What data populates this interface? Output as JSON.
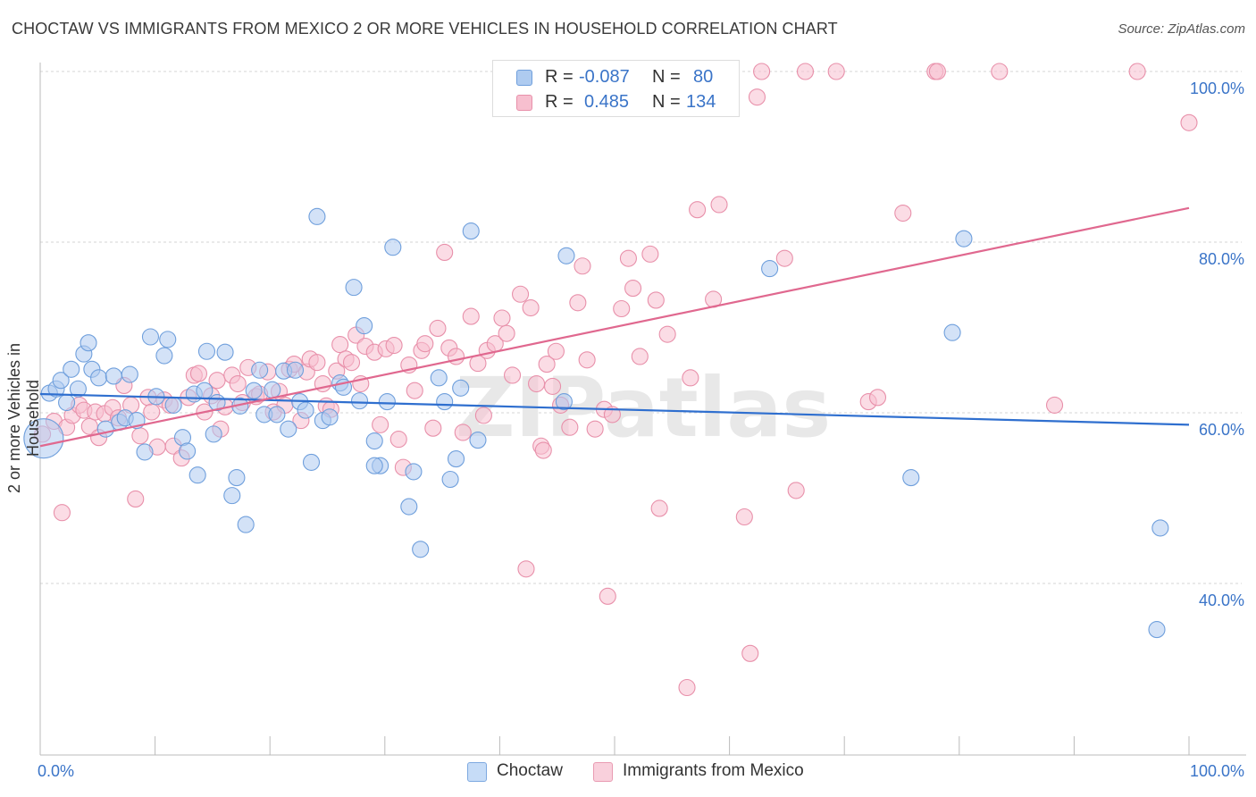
{
  "title": "CHOCTAW VS IMMIGRANTS FROM MEXICO 2 OR MORE VEHICLES IN HOUSEHOLD CORRELATION CHART",
  "source": "Source: ZipAtlas.com",
  "watermark": "ZIPatlas",
  "legend": {
    "rows": [
      {
        "r_label": "R =",
        "r_value": "-0.087",
        "n_label": "N =",
        "n_value": "80",
        "color": "#aecbf0",
        "stroke": "#6f9fdc"
      },
      {
        "r_label": "R =",
        "r_value": "0.485",
        "n_label": "N =",
        "n_value": "134",
        "color": "#f7bfcf",
        "stroke": "#e890aa"
      }
    ]
  },
  "bottom_legend": [
    {
      "label": "Choctaw",
      "color": "#c6dcf7",
      "stroke": "#7ea9e0"
    },
    {
      "label": "Immigrants from Mexico",
      "color": "#f9d0dc",
      "stroke": "#e99bb2"
    }
  ],
  "chart_data": {
    "type": "scatter",
    "title": "CHOCTAW VS IMMIGRANTS FROM MEXICO 2 OR MORE VEHICLES IN HOUSEHOLD CORRELATION CHART",
    "xlabel": "",
    "ylabel": "2 or more Vehicles in Household",
    "xlim": [
      0,
      100
    ],
    "ylim": [
      20,
      102
    ],
    "x_tick_labels": [
      "0.0%",
      "100.0%"
    ],
    "y_ticks": [
      40,
      60,
      80,
      100
    ],
    "y_tick_labels": [
      "40.0%",
      "60.0%",
      "80.0%",
      "100.0%"
    ],
    "grid": true,
    "series": [
      {
        "name": "Choctaw",
        "color": "#6f9fdc",
        "fill": "#aecbf0",
        "trend": {
          "x": [
            0,
            100
          ],
          "y": [
            62.2,
            58.6
          ]
        },
        "points": [
          [
            0.3,
            57
          ],
          [
            0.8,
            62.3
          ],
          [
            1.4,
            62.8
          ],
          [
            1.8,
            63.8
          ],
          [
            2.3,
            61.2
          ],
          [
            2.7,
            65.1
          ],
          [
            3.3,
            62.8
          ],
          [
            3.8,
            66.9
          ],
          [
            4.2,
            68.2
          ],
          [
            4.5,
            65.1
          ],
          [
            5.1,
            64.1
          ],
          [
            5.7,
            58.1
          ],
          [
            6.4,
            64.3
          ],
          [
            6.9,
            58.9
          ],
          [
            7.4,
            59.4
          ],
          [
            7.8,
            64.5
          ],
          [
            8.4,
            59.1
          ],
          [
            9.1,
            55.4
          ],
          [
            9.6,
            68.9
          ],
          [
            10.1,
            61.9
          ],
          [
            10.8,
            66.7
          ],
          [
            11.1,
            68.6
          ],
          [
            11.6,
            60.9
          ],
          [
            12.4,
            57.1
          ],
          [
            12.8,
            55.5
          ],
          [
            13.4,
            62.2
          ],
          [
            13.7,
            52.7
          ],
          [
            14.3,
            62.6
          ],
          [
            14.5,
            67.2
          ],
          [
            15.1,
            57.5
          ],
          [
            15.4,
            61.2
          ],
          [
            16.1,
            67.1
          ],
          [
            16.7,
            50.3
          ],
          [
            17.1,
            52.4
          ],
          [
            17.4,
            60.8
          ],
          [
            17.9,
            46.9
          ],
          [
            18.6,
            62.6
          ],
          [
            19.1,
            65
          ],
          [
            19.5,
            59.8
          ],
          [
            20.2,
            62.7
          ],
          [
            20.6,
            59.8
          ],
          [
            21.2,
            64.9
          ],
          [
            21.6,
            58.1
          ],
          [
            22.2,
            65
          ],
          [
            22.6,
            61.3
          ],
          [
            23.1,
            60.3
          ],
          [
            23.6,
            54.2
          ],
          [
            24.1,
            83
          ],
          [
            24.6,
            59.1
          ],
          [
            25.2,
            59.5
          ],
          [
            26.1,
            63.5
          ],
          [
            26.4,
            63
          ],
          [
            27.3,
            74.7
          ],
          [
            27.8,
            61.4
          ],
          [
            28.2,
            70.2
          ],
          [
            29.1,
            56.7
          ],
          [
            29.6,
            53.8
          ],
          [
            29.1,
            53.8
          ],
          [
            30.2,
            61.3
          ],
          [
            30.7,
            79.4
          ],
          [
            32.1,
            49
          ],
          [
            32.5,
            53.1
          ],
          [
            33.1,
            44
          ],
          [
            34.7,
            64.1
          ],
          [
            35.2,
            61.3
          ],
          [
            35.7,
            52.2
          ],
          [
            36.2,
            54.6
          ],
          [
            36.6,
            62.9
          ],
          [
            37.5,
            81.3
          ],
          [
            38.1,
            56.8
          ],
          [
            45.6,
            61.3
          ],
          [
            45.8,
            78.4
          ],
          [
            63.5,
            76.9
          ],
          [
            75.8,
            52.4
          ],
          [
            80.4,
            80.4
          ],
          [
            79.4,
            69.4
          ],
          [
            97.5,
            46.5
          ],
          [
            97.2,
            34.6
          ]
        ]
      },
      {
        "name": "Immigrants from Mexico",
        "color": "#e890aa",
        "fill": "#f7bfcf",
        "trend": {
          "x": [
            0,
            100
          ],
          "y": [
            56.1,
            84
          ]
        },
        "points": [
          [
            0.2,
            57.5
          ],
          [
            1.2,
            59
          ],
          [
            1.9,
            48.3
          ],
          [
            2.3,
            58.3
          ],
          [
            2.8,
            59.7
          ],
          [
            3.4,
            60.9
          ],
          [
            3.8,
            60.3
          ],
          [
            4.3,
            58.4
          ],
          [
            4.8,
            60.1
          ],
          [
            5.1,
            57.1
          ],
          [
            5.6,
            59.9
          ],
          [
            6.3,
            60.6
          ],
          [
            6.8,
            59.4
          ],
          [
            7.3,
            63.2
          ],
          [
            7.9,
            60.9
          ],
          [
            8.3,
            49.9
          ],
          [
            8.7,
            57.3
          ],
          [
            9.4,
            61.8
          ],
          [
            9.7,
            60.1
          ],
          [
            10.2,
            56
          ],
          [
            10.8,
            61.5
          ],
          [
            11.3,
            60.9
          ],
          [
            11.6,
            56.1
          ],
          [
            12.3,
            54.7
          ],
          [
            12.9,
            61.8
          ],
          [
            13.4,
            64.4
          ],
          [
            13.8,
            64.6
          ],
          [
            14.3,
            60.1
          ],
          [
            14.9,
            62
          ],
          [
            15.4,
            63.8
          ],
          [
            15.7,
            58.1
          ],
          [
            16.1,
            60.7
          ],
          [
            16.7,
            64.4
          ],
          [
            17.2,
            63.4
          ],
          [
            17.6,
            61.2
          ],
          [
            18.1,
            65.3
          ],
          [
            18.8,
            61.9
          ],
          [
            19.1,
            62.2
          ],
          [
            19.8,
            64.8
          ],
          [
            20.3,
            60.1
          ],
          [
            20.8,
            62.5
          ],
          [
            21.3,
            60.9
          ],
          [
            21.7,
            65.1
          ],
          [
            22.1,
            65.7
          ],
          [
            22.7,
            59.1
          ],
          [
            23.2,
            64.8
          ],
          [
            23.5,
            66.3
          ],
          [
            24.1,
            65.9
          ],
          [
            24.6,
            63.4
          ],
          [
            24.9,
            60.8
          ],
          [
            25.3,
            60.4
          ],
          [
            25.8,
            64.9
          ],
          [
            26.1,
            68
          ],
          [
            26.6,
            66.3
          ],
          [
            27.1,
            65.9
          ],
          [
            27.5,
            69.1
          ],
          [
            27.9,
            63.4
          ],
          [
            28.3,
            67.8
          ],
          [
            29.1,
            67.1
          ],
          [
            29.6,
            58.6
          ],
          [
            30.1,
            67.5
          ],
          [
            30.8,
            67.9
          ],
          [
            31.2,
            56.9
          ],
          [
            31.6,
            53.6
          ],
          [
            32.1,
            65.6
          ],
          [
            32.6,
            62.6
          ],
          [
            33.2,
            67.3
          ],
          [
            33.5,
            68.1
          ],
          [
            34.2,
            58.2
          ],
          [
            34.6,
            69.9
          ],
          [
            35.2,
            78.8
          ],
          [
            35.6,
            67.6
          ],
          [
            36.2,
            66.6
          ],
          [
            36.8,
            57.7
          ],
          [
            37.5,
            71.3
          ],
          [
            38.1,
            65.8
          ],
          [
            38.6,
            59.7
          ],
          [
            38.9,
            67.3
          ],
          [
            39.6,
            68.1
          ],
          [
            40.2,
            71.1
          ],
          [
            40.6,
            69.3
          ],
          [
            41.1,
            64.4
          ],
          [
            41.8,
            73.9
          ],
          [
            42.3,
            41.7
          ],
          [
            42.7,
            72.3
          ],
          [
            43.2,
            63.4
          ],
          [
            43.6,
            56.1
          ],
          [
            43.8,
            55.6
          ],
          [
            44.1,
            65.7
          ],
          [
            44.6,
            63.1
          ],
          [
            44.9,
            67.2
          ],
          [
            45.3,
            60.9
          ],
          [
            46.1,
            58.3
          ],
          [
            46.8,
            72.9
          ],
          [
            47.2,
            77.2
          ],
          [
            47.6,
            66.2
          ],
          [
            48.3,
            58.1
          ],
          [
            49.1,
            60.4
          ],
          [
            49.4,
            38.5
          ],
          [
            49.8,
            59.8
          ],
          [
            50.6,
            72.2
          ],
          [
            51.2,
            78.1
          ],
          [
            51.6,
            74.6
          ],
          [
            52.2,
            66.6
          ],
          [
            53.1,
            78.6
          ],
          [
            53.6,
            73.2
          ],
          [
            53.9,
            48.8
          ],
          [
            54.6,
            69.2
          ],
          [
            56.6,
            64.1
          ],
          [
            57.2,
            83.8
          ],
          [
            58.6,
            73.3
          ],
          [
            59.1,
            84.4
          ],
          [
            61.3,
            47.8
          ],
          [
            61.8,
            31.8
          ],
          [
            62.4,
            97
          ],
          [
            62.8,
            100
          ],
          [
            64.8,
            78.1
          ],
          [
            65.8,
            50.9
          ],
          [
            66.6,
            100
          ],
          [
            69.3,
            100
          ],
          [
            72.1,
            61.3
          ],
          [
            72.9,
            61.8
          ],
          [
            75.1,
            83.4
          ],
          [
            77.9,
            100
          ],
          [
            78.1,
            100
          ],
          [
            83.5,
            100
          ],
          [
            88.3,
            60.9
          ],
          [
            95.5,
            100
          ],
          [
            100,
            94
          ],
          [
            56.3,
            27.8
          ]
        ]
      }
    ]
  }
}
